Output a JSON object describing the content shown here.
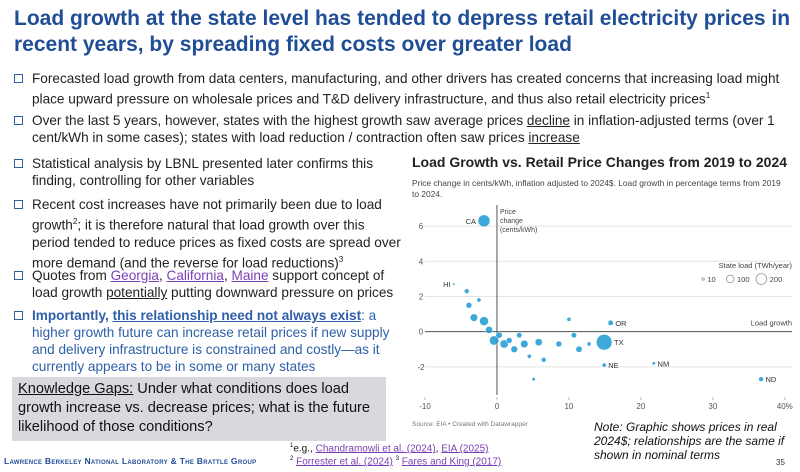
{
  "title": "Load growth at the state level has tended to depress retail electricity prices in recent years, by spreading fixed costs over greater load",
  "bullets": [
    {
      "parts": [
        {
          "text": "Forecasted load growth from data centers, manufacturing, and other drivers has created concerns that increasing load might place upward pressure on wholesale prices and T&D delivery infrastructure, and thus also retail electricity prices"
        },
        {
          "text": "1",
          "style": "sup"
        }
      ]
    },
    {
      "parts": [
        {
          "text": "Over the last 5 years, however, states with the highest growth saw average prices "
        },
        {
          "text": "decline",
          "style": "underline"
        },
        {
          "text": " in inflation-adjusted terms (over 1 cent/kWh in some cases); states with load reduction / contraction often saw prices "
        },
        {
          "text": "increase",
          "style": "underline"
        }
      ]
    },
    {
      "parts": [
        {
          "text": "Statistical analysis by LBNL presented later confirms this finding, controlling for other variables"
        }
      ]
    },
    {
      "parts": [
        {
          "text": "Recent cost increases have not primarily been due to load growth"
        },
        {
          "text": "2",
          "style": "sup"
        },
        {
          "text": "; it is therefore natural that load growth over this period tended to reduce prices as fixed costs are spread over more demand (and the reverse for load reductions)"
        },
        {
          "text": "3",
          "style": "sup"
        }
      ]
    },
    {
      "parts": [
        {
          "text": "Quotes from "
        },
        {
          "text": "Georgia",
          "style": "link"
        },
        {
          "text": ", "
        },
        {
          "text": "California",
          "style": "link"
        },
        {
          "text": ", "
        },
        {
          "text": "Maine",
          "style": "link"
        },
        {
          "text": " support concept of load growth "
        },
        {
          "text": "potentially",
          "style": "underline"
        },
        {
          "text": " putting downward pressure on prices"
        }
      ]
    },
    {
      "emphasis": true,
      "parts": [
        {
          "text": "Importantly, ",
          "style": "bold"
        },
        {
          "text": "this relationship need not always exist",
          "style": "bold-underline"
        },
        {
          "text": ": a higher growth future can increase retail prices if new supply and delivery infrastructure is constrained and costly—as it currently appears to be in some or many states"
        }
      ]
    }
  ],
  "knowledge_gaps": {
    "heading": "Knowledge Gaps:",
    "text": " Under what conditions does load growth increase vs. decrease prices; what is the future likelihood of those conditions?"
  },
  "note": "Note: Graphic shows prices in real 2024$; relationships are the same if shown in nominal terms",
  "footnotes": [
    {
      "parts": [
        {
          "text": "1",
          "style": "sup"
        },
        {
          "text": "e.g., "
        },
        {
          "text": "Chandramowli et al. (2024)",
          "style": "link"
        },
        {
          "text": ", "
        },
        {
          "text": "EIA (2025)",
          "style": "link"
        }
      ]
    },
    {
      "parts": [
        {
          "text": "2",
          "style": "sup"
        },
        {
          "text": " "
        },
        {
          "text": "Forrester et al. (2024)",
          "style": "link"
        },
        {
          "text": " "
        },
        {
          "text": "3",
          "style": "sup"
        },
        {
          "text": " "
        },
        {
          "text": "Fares and King (2017)",
          "style": "link"
        }
      ]
    }
  ],
  "footer": "Lawrence Berkeley National Laboratory & The Brattle Group",
  "page_number": "35",
  "chart": {
    "type": "scatter",
    "title": "Load Growth vs. Retail Price Changes from 2019 to 2024",
    "subtitle": "Price change in cents/kWh, inflation adjusted to 2024$. Load growth in percentage terms from 2019 to 2024.",
    "source": "Source: EIA • Created with Datawrapper",
    "y_axis_label": "Price change (cents/kWh)",
    "x_axis_label": "Load growth",
    "size_legend_title": "State load (TWh/year)",
    "size_legend": [
      10,
      100,
      200
    ],
    "color": "#1b9ad2",
    "xlim": [
      -10,
      41
    ],
    "ylim": [
      -3.6,
      7.2
    ],
    "xticks": [
      -10,
      0,
      10,
      20,
      30,
      {
        "value": 40,
        "label": "40%"
      }
    ],
    "yticks": [
      -2,
      0,
      2,
      4,
      6
    ],
    "grid": true,
    "x": [
      -1.8,
      -6,
      -4.2,
      -3.9,
      -3.2,
      -2.5,
      -1.8,
      -1.1,
      -0.4,
      0.3,
      1,
      1.7,
      2.4,
      3.1,
      3.8,
      4.5,
      5.8,
      6.5,
      5.1,
      8.6,
      10,
      10.7,
      11.4,
      12.8,
      15.8,
      14.9,
      14.9,
      21.8,
      36.7
    ],
    "y": [
      6.3,
      2.7,
      2.3,
      1.5,
      0.8,
      1.8,
      0.6,
      0.1,
      -0.5,
      -0.2,
      -0.7,
      -0.5,
      -1,
      -0.2,
      -0.7,
      -1.4,
      -0.6,
      -1.6,
      -2.7,
      -0.7,
      0.7,
      -0.2,
      -1,
      -0.7,
      0.5,
      -0.6,
      -1.9,
      -1.8,
      -2.7
    ],
    "size": [
      250,
      10,
      40,
      60,
      100,
      30,
      140,
      90,
      150,
      70,
      120,
      60,
      80,
      50,
      100,
      30,
      90,
      40,
      20,
      60,
      30,
      50,
      70,
      30,
      50,
      430,
      30,
      20,
      40
    ],
    "labels": [
      "CA",
      "HI",
      null,
      null,
      null,
      null,
      null,
      null,
      null,
      null,
      null,
      null,
      null,
      null,
      null,
      null,
      null,
      null,
      null,
      null,
      null,
      null,
      null,
      null,
      "OR",
      "TX",
      "NE",
      "NM",
      "ND"
    ]
  }
}
